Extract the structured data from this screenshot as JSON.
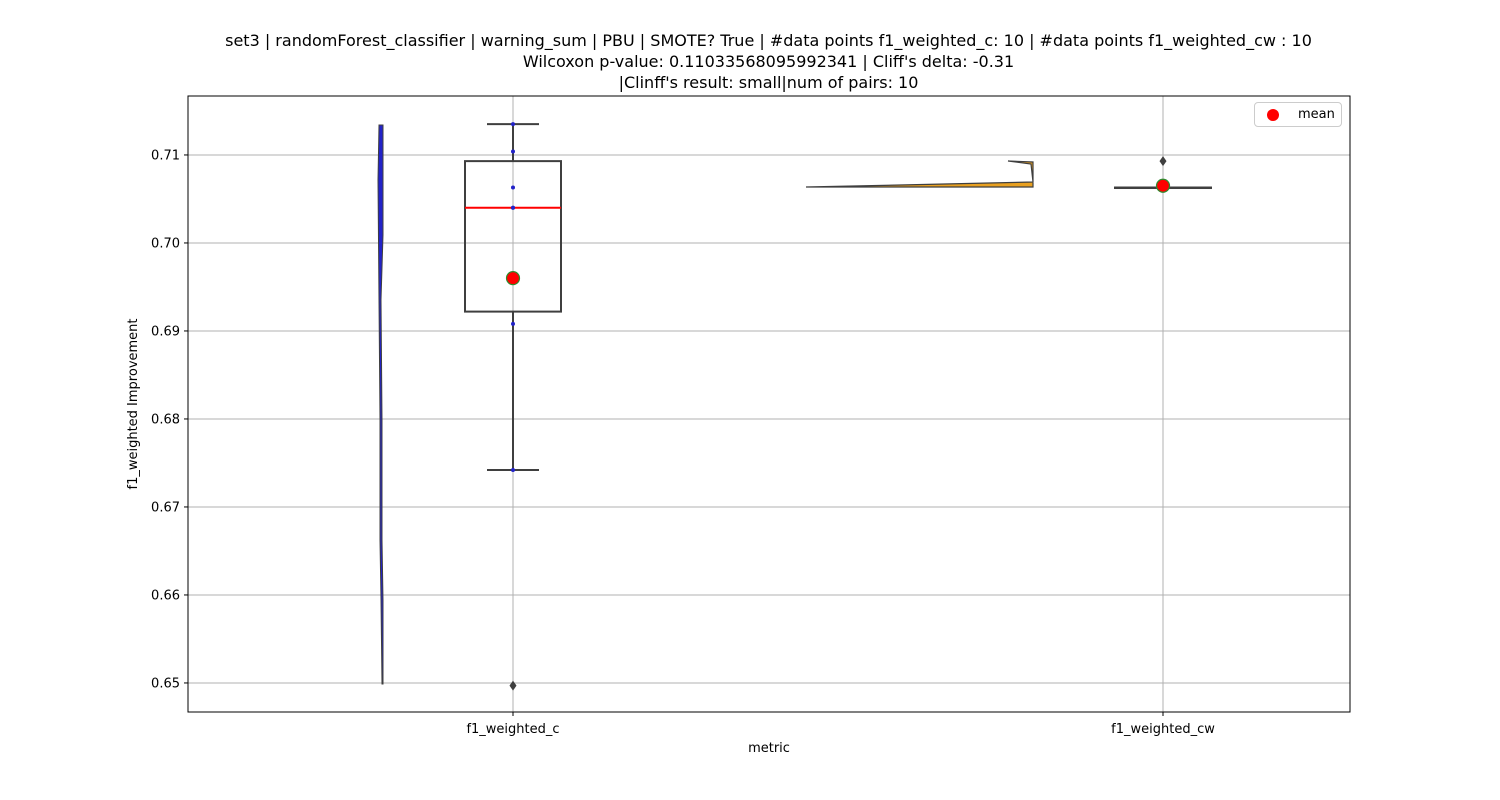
{
  "chart_data": {
    "type": "box+violin",
    "title_lines": [
      "set3 | randomForest_classifier | warning_sum | PBU | SMOTE? True | #data points f1_weighted_c: 10 | #data points f1_weighted_cw : 10",
      "Wilcoxon p-value: 0.11033568095992341 | Cliff's delta: -0.31",
      "|Clinff's result: small|num of pairs: 10"
    ],
    "xlabel": "metric",
    "ylabel": "f1_weighted Improvement",
    "ylim": [
      0.6467,
      0.7167
    ],
    "yticks": [
      0.65,
      0.66,
      0.67,
      0.68,
      0.69,
      0.7,
      0.71
    ],
    "ytick_labels": [
      "0.65",
      "0.66",
      "0.67",
      "0.68",
      "0.69",
      "0.70",
      "0.71"
    ],
    "categories": [
      "f1_weighted_c",
      "f1_weighted_cw"
    ],
    "grid": true,
    "legend": {
      "position": "top-right",
      "entries": [
        "mean"
      ]
    },
    "colors": {
      "violin_c": "#2323c8",
      "violin_cw": "#e8a020",
      "median": "#ff0000",
      "mean": "#ff0000",
      "mean_edge": "#2e8b2e",
      "box_edge": "#3f3f3f",
      "grid": "#b0b0b0"
    },
    "boxes": [
      {
        "name": "f1_weighted_c",
        "whisker_low": 0.6742,
        "q1": 0.6922,
        "median": 0.704,
        "q3": 0.7093,
        "whisker_high": 0.7135,
        "mean": 0.696,
        "outliers": [
          0.6497
        ],
        "points": [
          0.7135,
          0.7104,
          0.7063,
          0.704,
          0.704,
          0.6908,
          0.6742,
          0.6497
        ]
      },
      {
        "name": "f1_weighted_cw",
        "whisker_low": 0.7063,
        "q1": 0.7063,
        "median": 0.7063,
        "q3": 0.7063,
        "whisker_high": 0.7063,
        "mean": 0.7065,
        "outliers": [
          0.7093
        ],
        "points": []
      }
    ]
  }
}
